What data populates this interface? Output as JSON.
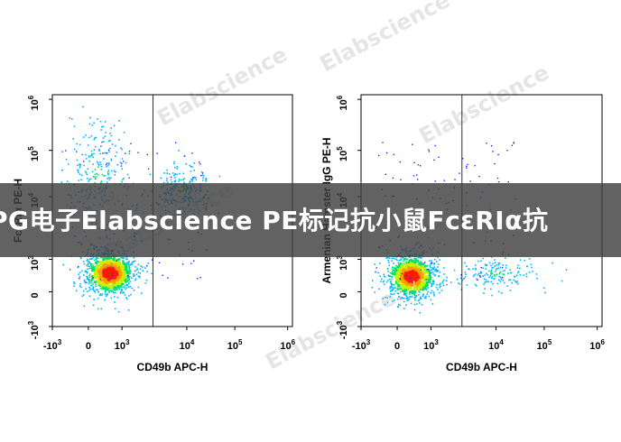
{
  "banner": {
    "text": "PG电子Elabscience PE标记抗小鼠FcεRIα抗"
  },
  "watermark": {
    "text": "Elabscience"
  },
  "chart_data": [
    {
      "type": "scatter",
      "plot_type": "flow cytometry density dot plot",
      "xlabel": "CD49b APC-H",
      "ylabel": "FcεRIα PE-H",
      "ylabel_visible_fragment": "Fc",
      "ylabel_visible_suffix": "PE-H",
      "x_scale": "biexponential",
      "y_scale": "biexponential",
      "x_ticks": [
        "-10^3",
        "0",
        "10^3",
        "10^4",
        "10^5",
        "10^6"
      ],
      "y_ticks": [
        "-10^3",
        "0",
        "10^3",
        "10^4",
        "10^5",
        "10^6"
      ],
      "gate_x": 3000,
      "populations": [
        {
          "cx": 600,
          "cy": 600,
          "spread": "dense core",
          "note": "main double-negative cluster"
        },
        {
          "cx": 300,
          "cy": 25000,
          "spread": "vertical tail",
          "note": "scattered high PE events"
        },
        {
          "cx": 8000,
          "cy": 15000,
          "spread": "moderate",
          "note": "FcεRIα+ CD49b+ population"
        }
      ]
    },
    {
      "type": "scatter",
      "plot_type": "flow cytometry density dot plot",
      "xlabel": "CD49b APC-H",
      "ylabel": "Armenian Hamster IgG PE-H",
      "x_scale": "biexponential",
      "y_scale": "biexponential",
      "x_ticks": [
        "-10^3",
        "0",
        "10^3",
        "10^4",
        "10^5",
        "10^6"
      ],
      "y_ticks": [
        "-10^3",
        "0",
        "10^3",
        "10^4",
        "10^5",
        "10^6"
      ],
      "gate_x": 3000,
      "populations": [
        {
          "cx": 400,
          "cy": 500,
          "spread": "dense core",
          "note": "isotype control main cluster"
        },
        {
          "cx": 10000,
          "cy": 600,
          "spread": "low",
          "note": "CD49b+ events at low PE"
        }
      ]
    }
  ]
}
